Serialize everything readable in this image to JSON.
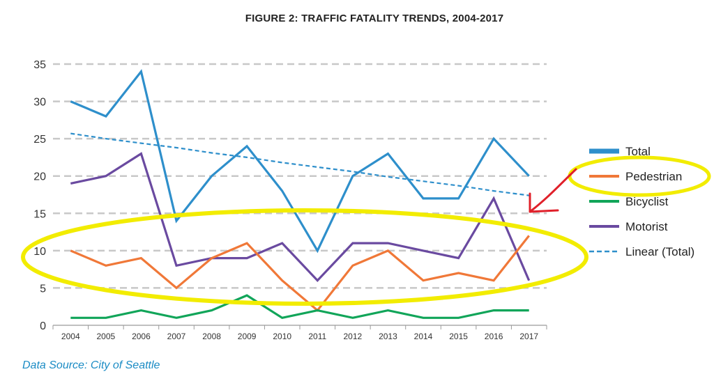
{
  "chart_data": {
    "type": "line",
    "title": "FIGURE 2: TRAFFIC FATALITY TRENDS, 2004-2017",
    "source": "Data Source: City of Seattle",
    "xlabel": "",
    "ylabel": "",
    "ylim": [
      0,
      35
    ],
    "yticks": [
      0,
      5,
      10,
      15,
      20,
      25,
      30,
      35
    ],
    "grid": true,
    "legend_position": "right",
    "categories": [
      "2004",
      "2005",
      "2006",
      "2007",
      "2008",
      "2009",
      "2010",
      "2011",
      "2012",
      "2013",
      "2014",
      "2015",
      "2016",
      "2017"
    ],
    "series": [
      {
        "name": "Total",
        "color": "#2e8fcb",
        "style": "solid",
        "values": [
          30,
          28,
          34,
          14,
          20,
          24,
          18,
          10,
          20,
          23,
          17,
          17,
          25,
          20
        ]
      },
      {
        "name": "Pedestrian",
        "color": "#f07838",
        "style": "solid",
        "values": [
          10,
          8,
          9,
          5,
          9,
          11,
          6,
          2,
          8,
          10,
          6,
          7,
          6,
          12
        ]
      },
      {
        "name": "Bicyclist",
        "color": "#11a559",
        "style": "solid",
        "values": [
          1,
          1,
          2,
          1,
          2,
          4,
          1,
          2,
          1,
          2,
          1,
          1,
          2,
          2
        ]
      },
      {
        "name": "Motorist",
        "color": "#6a4aa0",
        "style": "solid",
        "values": [
          19,
          20,
          23,
          8,
          9,
          9,
          11,
          6,
          11,
          11,
          10,
          9,
          17,
          6
        ]
      },
      {
        "name": "Linear (Total)",
        "color": "#2e8fcb",
        "style": "dashed",
        "values": [
          25.7,
          25.0,
          24.4,
          23.8,
          23.1,
          22.5,
          21.8,
          21.2,
          20.6,
          19.9,
          19.3,
          18.7,
          18.0,
          17.4
        ]
      }
    ],
    "annotations": [
      {
        "type": "highlight-ellipse",
        "color": "#f5f000",
        "note": "around Pedestrian, Motorist, Bicyclist lines"
      },
      {
        "type": "highlight-ellipse",
        "color": "#f5f000",
        "note": "around Pedestrian legend entry"
      },
      {
        "type": "arrow",
        "color": "#e0202a",
        "note": "from legend toward 2017 end of lines"
      }
    ]
  }
}
